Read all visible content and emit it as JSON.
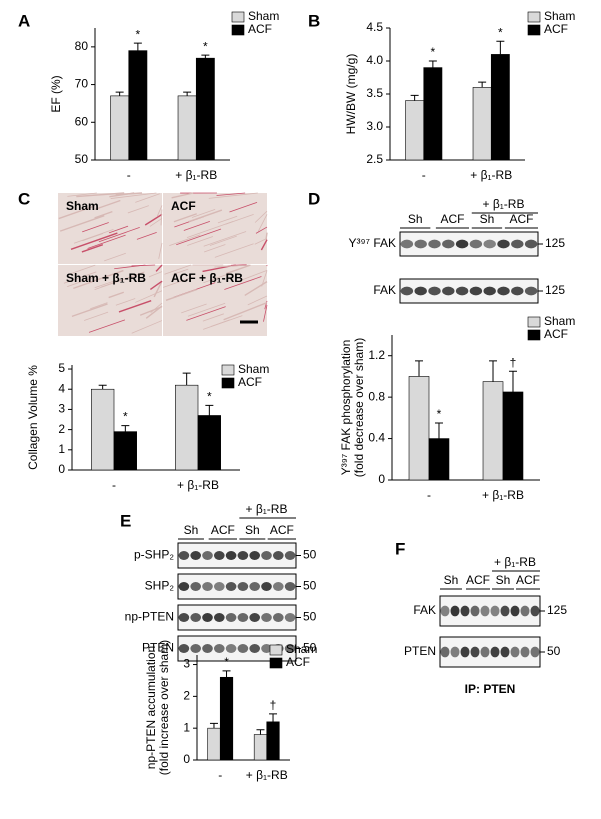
{
  "panel_labels": [
    "A",
    "B",
    "C",
    "D",
    "E",
    "F"
  ],
  "histology": {
    "labels": [
      "Sham",
      "ACF",
      "Sham + β₁-RB",
      "ACF + β₁-RB"
    ]
  },
  "blot_d": {
    "group": "+ β₁-RB",
    "lanes": [
      "Sh",
      "ACF",
      "Sh",
      "ACF"
    ],
    "rows": [
      "Y³⁹⁷ FAK",
      "FAK"
    ],
    "markers": [
      "125",
      "125"
    ]
  },
  "blot_e": {
    "group": "+ β₁-RB",
    "lanes": [
      "Sh",
      "ACF",
      "Sh",
      "ACF"
    ],
    "rows": [
      "p-SHP₂",
      "SHP₂",
      "np-PTEN",
      "PTEN"
    ],
    "markers": [
      "50",
      "50",
      "50",
      "50"
    ]
  },
  "blot_f": {
    "group": "+ β₁-RB",
    "lanes": [
      "Sh",
      "ACF",
      "Sh",
      "ACF"
    ],
    "rows": [
      "FAK",
      "PTEN"
    ],
    "markers": [
      "125",
      "50"
    ],
    "caption": "IP: PTEN"
  },
  "chart_data": [
    {
      "type": "bar",
      "ylabel": "EF (%)",
      "categories": [
        "-",
        "+ β₁-RB"
      ],
      "ylim": [
        50,
        85
      ],
      "yticks": [
        50,
        60,
        70,
        80
      ],
      "legend": "top-right",
      "series": [
        {
          "name": "Sham",
          "color": "#d9d9d9",
          "values": [
            67,
            67
          ],
          "errors": [
            1,
            1
          ]
        },
        {
          "name": "ACF",
          "color": "#000000",
          "values": [
            79,
            77
          ],
          "errors": [
            2,
            0.8
          ],
          "annotations": [
            "*",
            "*"
          ]
        }
      ]
    },
    {
      "type": "bar",
      "ylabel": "HW/BW (mg/g)",
      "categories": [
        "-",
        "+ β₁-RB"
      ],
      "ylim": [
        2.5,
        4.5
      ],
      "yticks": [
        2.5,
        {
          "value": 3,
          "label": "3.0"
        },
        3.5,
        {
          "value": 4,
          "label": "4.0"
        },
        4.5
      ],
      "legend": "top-right",
      "series": [
        {
          "name": "Sham",
          "color": "#d9d9d9",
          "values": [
            3.4,
            3.6
          ],
          "errors": [
            0.08,
            0.08
          ]
        },
        {
          "name": "ACF",
          "color": "#000000",
          "values": [
            3.9,
            4.1
          ],
          "errors": [
            0.1,
            0.2
          ],
          "annotations": [
            "*",
            "*"
          ]
        }
      ]
    },
    {
      "type": "bar",
      "ylabel": "Collagen Volume %",
      "categories": [
        "-",
        "+ β₁-RB"
      ],
      "ylim": [
        0,
        5.2
      ],
      "yticks": [
        0,
        1,
        2,
        3,
        4,
        5
      ],
      "legend": "top-right",
      "series": [
        {
          "name": "Sham",
          "color": "#d9d9d9",
          "values": [
            4.0,
            4.2
          ],
          "errors": [
            0.2,
            0.6
          ]
        },
        {
          "name": "ACF",
          "color": "#000000",
          "values": [
            1.9,
            2.7
          ],
          "errors": [
            0.3,
            0.5
          ],
          "annotations": [
            "*",
            "*"
          ]
        }
      ]
    },
    {
      "type": "bar",
      "ylabel": [
        "Y³⁹⁷ FAK phosphorylation",
        "(fold decrease over sham)"
      ],
      "categories": [
        "-",
        "+ β₁-RB"
      ],
      "ylim": [
        0,
        1.4
      ],
      "yticks": [
        0,
        0.4,
        0.8,
        1.2
      ],
      "legend": "top-right",
      "series": [
        {
          "name": "Sham",
          "color": "#d9d9d9",
          "values": [
            1.0,
            0.95
          ],
          "errors": [
            0.15,
            0.2
          ]
        },
        {
          "name": "ACF",
          "color": "#000000",
          "values": [
            0.4,
            0.85
          ],
          "errors": [
            0.15,
            0.2
          ],
          "annotations": [
            "*",
            "†"
          ]
        }
      ]
    },
    {
      "type": "bar",
      "ylabel": [
        "np-PTEN accumulation",
        "(fold increase over sham)"
      ],
      "categories": [
        "-",
        "+ β₁-RB"
      ],
      "ylim": [
        0,
        3.3
      ],
      "yticks": [
        0,
        1,
        2,
        3
      ],
      "legend": "top-right",
      "series": [
        {
          "name": "Sham",
          "color": "#d9d9d9",
          "values": [
            1.0,
            0.8
          ],
          "errors": [
            0.15,
            0.15
          ]
        },
        {
          "name": "ACF",
          "color": "#000000",
          "values": [
            2.6,
            1.2
          ],
          "errors": [
            0.2,
            0.25
          ],
          "annotations": [
            "*",
            "†"
          ]
        }
      ]
    }
  ]
}
